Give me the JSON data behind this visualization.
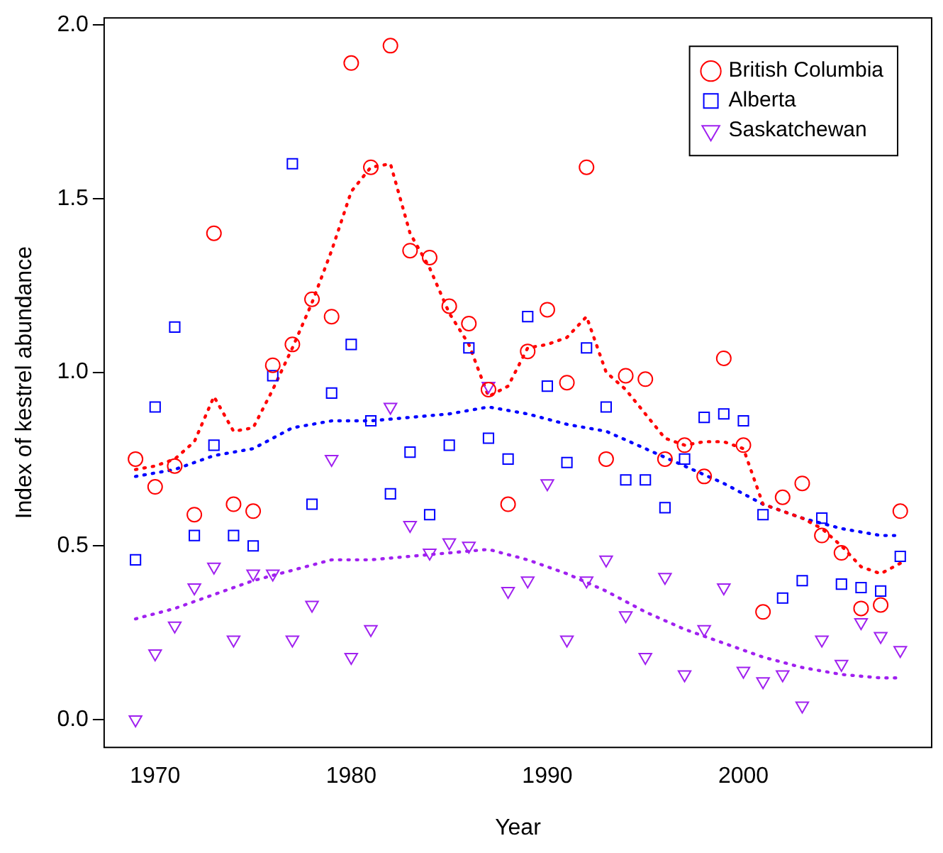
{
  "chart_data": {
    "type": "scatter",
    "xlabel": "Year",
    "ylabel": "Index of kestrel abundance",
    "x": [
      1969,
      1970,
      1971,
      1972,
      1973,
      1974,
      1975,
      1976,
      1977,
      1978,
      1979,
      1980,
      1981,
      1982,
      1983,
      1984,
      1985,
      1986,
      1987,
      1988,
      1989,
      1990,
      1991,
      1992,
      1993,
      1994,
      1995,
      1996,
      1997,
      1998,
      1999,
      2000,
      2001,
      2002,
      2003,
      2004,
      2005,
      2006,
      2007,
      2008
    ],
    "series": [
      {
        "name": "British Columbia",
        "color": "#ff0000",
        "marker": "circle",
        "values": [
          0.75,
          0.67,
          0.73,
          0.59,
          1.4,
          0.62,
          0.6,
          1.02,
          1.08,
          1.21,
          1.16,
          1.89,
          1.59,
          1.94,
          1.35,
          1.33,
          1.19,
          1.14,
          0.95,
          0.62,
          1.06,
          1.18,
          0.97,
          1.59,
          0.75,
          0.99,
          0.98,
          0.75,
          0.79,
          0.7,
          1.04,
          0.79,
          0.31,
          0.64,
          0.68,
          0.53,
          0.48,
          0.32,
          0.33,
          0.6
        ]
      },
      {
        "name": "Alberta",
        "color": "#0000ff",
        "marker": "square",
        "values": [
          0.46,
          0.9,
          1.13,
          0.53,
          0.79,
          0.53,
          0.5,
          0.99,
          1.6,
          0.62,
          0.94,
          1.08,
          0.86,
          0.65,
          0.77,
          0.59,
          0.79,
          1.07,
          0.81,
          0.75,
          1.16,
          0.96,
          0.74,
          1.07,
          0.9,
          0.69,
          0.69,
          0.61,
          0.75,
          0.87,
          0.88,
          0.86,
          0.59,
          0.35,
          0.4,
          0.58,
          0.39,
          0.38,
          0.37,
          0.47
        ]
      },
      {
        "name": "Saskatchewan",
        "color": "#a020f0",
        "marker": "triangle",
        "values": [
          0.0,
          0.19,
          0.27,
          0.38,
          0.44,
          0.23,
          0.42,
          0.42,
          0.23,
          0.33,
          0.75,
          0.18,
          0.26,
          0.9,
          0.56,
          0.48,
          0.51,
          0.5,
          0.96,
          0.37,
          0.4,
          0.68,
          0.23,
          0.4,
          0.46,
          0.3,
          0.18,
          0.41,
          0.13,
          0.26,
          0.38,
          0.14,
          0.11,
          0.13,
          0.04,
          0.23,
          0.16,
          0.28,
          0.24,
          0.2
        ]
      },
      {
        "type": "line",
        "color": "#ff0000",
        "line_style": "dotted",
        "marker": "none",
        "x": [
          1969,
          1970,
          1971,
          1972,
          1973,
          1974,
          1975,
          1976,
          1977,
          1978,
          1979,
          1980,
          1981,
          1982,
          1983,
          1984,
          1985,
          1986,
          1987,
          1988,
          1989,
          1990,
          1991,
          1992,
          1993,
          1994,
          1995,
          1996,
          1997,
          1998,
          1999,
          2000,
          2001,
          2002,
          2003,
          2004,
          2005,
          2006,
          2007,
          2008
        ],
        "values": [
          0.72,
          0.73,
          0.75,
          0.8,
          0.93,
          0.83,
          0.84,
          0.95,
          1.07,
          1.2,
          1.35,
          1.52,
          1.59,
          1.6,
          1.4,
          1.3,
          1.17,
          1.08,
          0.93,
          0.96,
          1.07,
          1.08,
          1.1,
          1.16,
          1.0,
          0.95,
          0.88,
          0.81,
          0.79,
          0.8,
          0.8,
          0.78,
          0.62,
          0.6,
          0.58,
          0.55,
          0.5,
          0.44,
          0.42,
          0.45
        ]
      },
      {
        "type": "line",
        "color": "#0000ff",
        "line_style": "dotted",
        "marker": "none",
        "x": [
          1969,
          1971,
          1973,
          1975,
          1977,
          1979,
          1981,
          1983,
          1985,
          1987,
          1989,
          1991,
          1993,
          1995,
          1997,
          1999,
          2001,
          2003,
          2005,
          2007,
          2008
        ],
        "values": [
          0.7,
          0.72,
          0.76,
          0.78,
          0.84,
          0.86,
          0.86,
          0.87,
          0.88,
          0.9,
          0.88,
          0.85,
          0.83,
          0.78,
          0.73,
          0.68,
          0.62,
          0.58,
          0.55,
          0.53,
          0.53
        ]
      },
      {
        "type": "line",
        "color": "#a020f0",
        "line_style": "dotted",
        "marker": "none",
        "x": [
          1969,
          1971,
          1973,
          1975,
          1977,
          1979,
          1981,
          1983,
          1985,
          1987,
          1989,
          1991,
          1993,
          1995,
          1997,
          1999,
          2001,
          2003,
          2005,
          2007,
          2008
        ],
        "values": [
          0.29,
          0.32,
          0.36,
          0.4,
          0.43,
          0.46,
          0.46,
          0.47,
          0.48,
          0.49,
          0.46,
          0.42,
          0.37,
          0.31,
          0.26,
          0.22,
          0.18,
          0.15,
          0.13,
          0.12,
          0.12
        ]
      }
    ],
    "xlim": [
      1967.4,
      2009.6
    ],
    "xticks": [
      1970,
      1980,
      1990,
      2000
    ],
    "ylim": [
      -0.08,
      2.02
    ],
    "yticks": [
      {
        "value": 0,
        "label": "0.0"
      },
      {
        "value": 0.5,
        "label": "0.5"
      },
      {
        "value": 1,
        "label": "1.0"
      },
      {
        "value": 1.5,
        "label": "1.5"
      },
      {
        "value": 2,
        "label": "2.0"
      }
    ],
    "grid": false,
    "legend": "top right"
  }
}
